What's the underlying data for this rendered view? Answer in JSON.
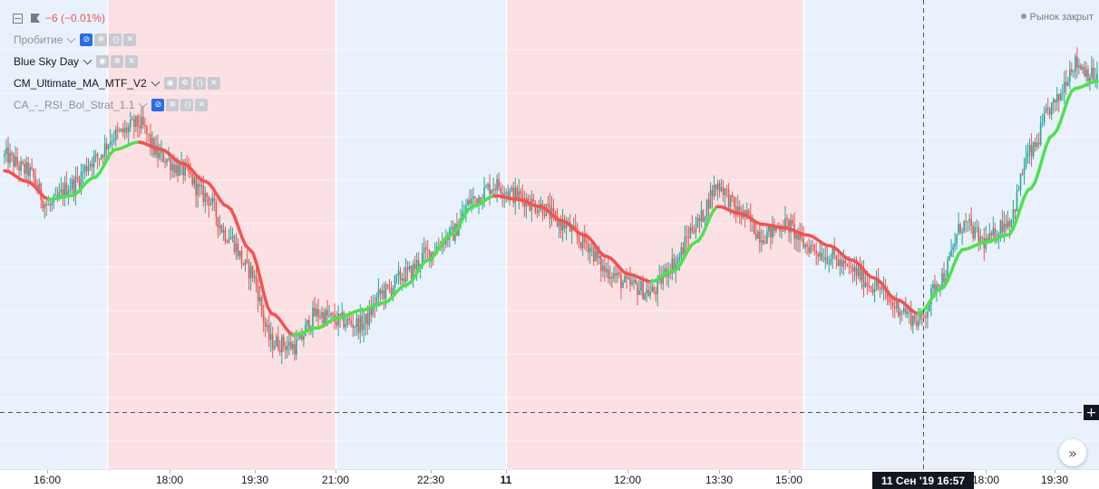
{
  "header": {
    "change_text": "−6 (−0.01%)",
    "market_status": "Рынок закрыт"
  },
  "indicators": [
    {
      "name": "Пробитие",
      "dim": true,
      "buttons": [
        "eye-off-icon",
        "gear-icon",
        "code-icon",
        "close-icon"
      ]
    },
    {
      "name": "Blue Sky Day",
      "dim": false,
      "buttons": [
        "eye-icon",
        "gear-icon",
        "close-icon"
      ]
    },
    {
      "name": "CM_Ultimate_MA_MTF_V2",
      "dim": false,
      "buttons": [
        "eye-icon",
        "gear-icon",
        "code-icon",
        "close-icon"
      ]
    },
    {
      "name": "CA_-_RSI_Bol_Strat_1.1",
      "dim": true,
      "buttons": [
        "eye-off-icon",
        "gear-icon",
        "code-icon",
        "close-icon"
      ]
    }
  ],
  "time_axis": {
    "ticks": [
      {
        "label": "16:00",
        "bold": false
      },
      {
        "label": "18:00",
        "bold": false
      },
      {
        "label": "19:30",
        "bold": false
      },
      {
        "label": "21:00",
        "bold": false
      },
      {
        "label": "22:30",
        "bold": false
      },
      {
        "label": "11",
        "bold": true
      },
      {
        "label": "12:00",
        "bold": false
      },
      {
        "label": "13:30",
        "bold": false
      },
      {
        "label": "15:00",
        "bold": false
      },
      {
        "label": "18:00",
        "bold": false
      },
      {
        "label": "19:30",
        "bold": false
      }
    ],
    "cursor_label": "11 Сен '19   16:57"
  },
  "colors": {
    "background_blue": "#e9f2fc",
    "background_red": "#fce1e4",
    "ma_up": "#4fe04f",
    "ma_down": "#f25353",
    "candle_up": "#26a69a",
    "candle_down": "#ef5350"
  },
  "chart_data": {
    "type": "line",
    "chart_style": "candlestick with moving-average overlay",
    "x_labels": [
      "16:00",
      "18:00",
      "19:30",
      "21:00",
      "22:30",
      "11",
      "12:00",
      "13:30",
      "15:00",
      "18:00",
      "19:30"
    ],
    "session_bands": [
      {
        "from": "before 16:00",
        "to": "~17:15",
        "color": "blue"
      },
      {
        "from": "~17:15",
        "to": "21:00",
        "color": "red"
      },
      {
        "from": "21:00",
        "to": "11",
        "color": "blue"
      },
      {
        "from": "11",
        "to": "15:00",
        "color": "red"
      },
      {
        "from": "15:00",
        "to": "after 19:30",
        "color": "blue"
      }
    ],
    "price_shape": [
      0.74,
      0.7,
      0.6,
      0.66,
      0.73,
      0.8,
      0.83,
      0.74,
      0.7,
      0.63,
      0.52,
      0.42,
      0.22,
      0.21,
      0.3,
      0.28,
      0.27,
      0.36,
      0.41,
      0.47,
      0.52,
      0.62,
      0.66,
      0.63,
      0.6,
      0.55,
      0.5,
      0.42,
      0.38,
      0.36,
      0.44,
      0.55,
      0.66,
      0.58,
      0.52,
      0.55,
      0.49,
      0.46,
      0.42,
      0.38,
      0.32,
      0.28,
      0.4,
      0.55,
      0.5,
      0.56,
      0.75,
      0.88,
      1.0,
      0.96
    ],
    "ma_shape": [
      0.7,
      0.67,
      0.62,
      0.63,
      0.68,
      0.76,
      0.78,
      0.76,
      0.72,
      0.67,
      0.6,
      0.48,
      0.3,
      0.24,
      0.26,
      0.29,
      0.31,
      0.33,
      0.38,
      0.45,
      0.52,
      0.6,
      0.63,
      0.62,
      0.6,
      0.56,
      0.52,
      0.46,
      0.41,
      0.39,
      0.42,
      0.5,
      0.6,
      0.58,
      0.55,
      0.54,
      0.52,
      0.49,
      0.45,
      0.4,
      0.34,
      0.3,
      0.37,
      0.48,
      0.5,
      0.52,
      0.65,
      0.8,
      0.93,
      0.95
    ]
  }
}
